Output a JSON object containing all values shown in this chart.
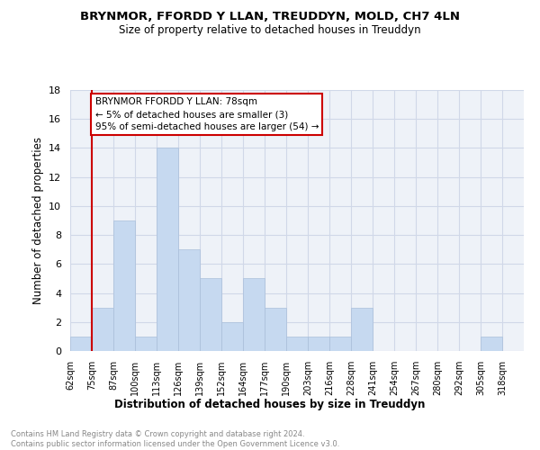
{
  "title1": "BRYNMOR, FFORDD Y LLAN, TREUDDYN, MOLD, CH7 4LN",
  "title2": "Size of property relative to detached houses in Treuddyn",
  "xlabel": "Distribution of detached houses by size in Treuddyn",
  "ylabel": "Number of detached properties",
  "footer": "Contains HM Land Registry data © Crown copyright and database right 2024.\nContains public sector information licensed under the Open Government Licence v3.0.",
  "bin_labels": [
    "62sqm",
    "75sqm",
    "87sqm",
    "100sqm",
    "113sqm",
    "126sqm",
    "139sqm",
    "152sqm",
    "164sqm",
    "177sqm",
    "190sqm",
    "203sqm",
    "216sqm",
    "228sqm",
    "241sqm",
    "254sqm",
    "267sqm",
    "280sqm",
    "292sqm",
    "305sqm",
    "318sqm"
  ],
  "bar_heights": [
    1,
    3,
    9,
    1,
    14,
    7,
    5,
    2,
    5,
    3,
    1,
    1,
    1,
    3,
    0,
    0,
    0,
    0,
    0,
    1,
    0
  ],
  "bar_color": "#c6d9f0",
  "bar_edge_color": "#aabfda",
  "grid_color": "#d0d8e8",
  "bg_color": "#eef2f8",
  "red_line_x": 1,
  "annotation_text": "BRYNMOR FFORDD Y LLAN: 78sqm\n← 5% of detached houses are smaller (3)\n95% of semi-detached houses are larger (54) →",
  "annotation_box_color": "#ffffff",
  "annotation_border_color": "#cc0000",
  "ylim": [
    0,
    18
  ],
  "yticks": [
    0,
    2,
    4,
    6,
    8,
    10,
    12,
    14,
    16,
    18
  ]
}
